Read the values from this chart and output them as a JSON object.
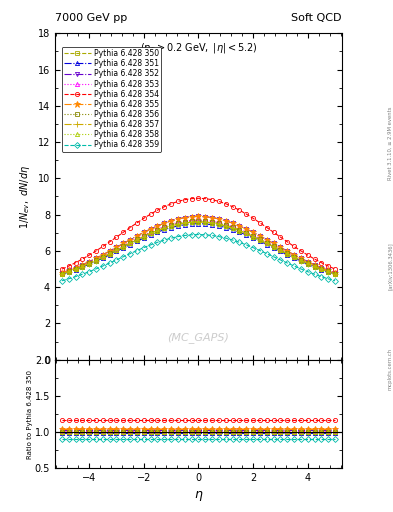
{
  "title_left": "7000 GeV pp",
  "title_right": "Soft QCD",
  "annotation": "$(p_T > 0.2$ GeV, $|\\eta| < 5.2)$",
  "watermark": "(MC_GAPS)",
  "ylabel_main": "$1/N_{ev},\\ dN/d\\eta$",
  "ylabel_ratio": "Ratio to Pythia 6.428 350",
  "xlabel": "$\\eta$",
  "right_label": "Rivet 3.1.10, ≥ 2.9M events",
  "arxiv_label": "[arXiv:1306.3436]",
  "mcplots_label": "mcplots.cern.ch",
  "ylim_main": [
    0,
    18
  ],
  "ylim_ratio": [
    0.5,
    2.0
  ],
  "xlim": [
    -5.25,
    5.25
  ],
  "eta_points": [
    -5.0,
    -4.75,
    -4.5,
    -4.25,
    -4.0,
    -3.75,
    -3.5,
    -3.25,
    -3.0,
    -2.75,
    -2.5,
    -2.25,
    -2.0,
    -1.75,
    -1.5,
    -1.25,
    -1.0,
    -0.75,
    -0.5,
    -0.25,
    0.0,
    0.25,
    0.5,
    0.75,
    1.0,
    1.25,
    1.5,
    1.75,
    2.0,
    2.25,
    2.5,
    2.75,
    3.0,
    3.25,
    3.5,
    3.75,
    4.0,
    4.25,
    4.5,
    4.75,
    5.0
  ],
  "series": [
    {
      "label": "Pythia 6.428 350",
      "color": "#aaaa00",
      "marker": "s",
      "linestyle": "--",
      "peak": 7.6,
      "base": 4.0,
      "sigma": 2.8,
      "ratio_val": 1.0
    },
    {
      "label": "Pythia 6.428 351",
      "color": "#0000dd",
      "marker": "^",
      "linestyle": "-.",
      "peak": 7.5,
      "base": 4.0,
      "sigma": 2.8,
      "ratio_val": 0.985
    },
    {
      "label": "Pythia 6.428 352",
      "color": "#6600cc",
      "marker": "v",
      "linestyle": "-.",
      "peak": 7.9,
      "base": 4.0,
      "sigma": 2.8,
      "ratio_val": 1.03
    },
    {
      "label": "Pythia 6.428 353",
      "color": "#ff00ff",
      "marker": "^",
      "linestyle": ":",
      "peak": 7.7,
      "base": 4.0,
      "sigma": 2.8,
      "ratio_val": 1.01
    },
    {
      "label": "Pythia 6.428 354",
      "color": "#ff0000",
      "marker": "o",
      "linestyle": "--",
      "peak": 8.9,
      "base": 4.0,
      "sigma": 2.8,
      "ratio_val": 1.17
    },
    {
      "label": "Pythia 6.428 355",
      "color": "#ff8800",
      "marker": "*",
      "linestyle": "-.",
      "peak": 7.9,
      "base": 4.0,
      "sigma": 2.8,
      "ratio_val": 1.04
    },
    {
      "label": "Pythia 6.428 356",
      "color": "#888800",
      "marker": "s",
      "linestyle": ":",
      "peak": 7.65,
      "base": 4.0,
      "sigma": 2.8,
      "ratio_val": 1.005
    },
    {
      "label": "Pythia 6.428 357",
      "color": "#ccaa00",
      "marker": "+",
      "linestyle": "-.",
      "peak": 7.6,
      "base": 4.0,
      "sigma": 2.8,
      "ratio_val": 1.0
    },
    {
      "label": "Pythia 6.428 358",
      "color": "#aacc00",
      "marker": "^",
      "linestyle": ":",
      "peak": 7.6,
      "base": 4.0,
      "sigma": 2.8,
      "ratio_val": 1.0
    },
    {
      "label": "Pythia 6.428 359",
      "color": "#00bbaa",
      "marker": "D",
      "linestyle": "--",
      "peak": 6.9,
      "base": 3.7,
      "sigma": 2.8,
      "ratio_val": 0.91
    }
  ]
}
